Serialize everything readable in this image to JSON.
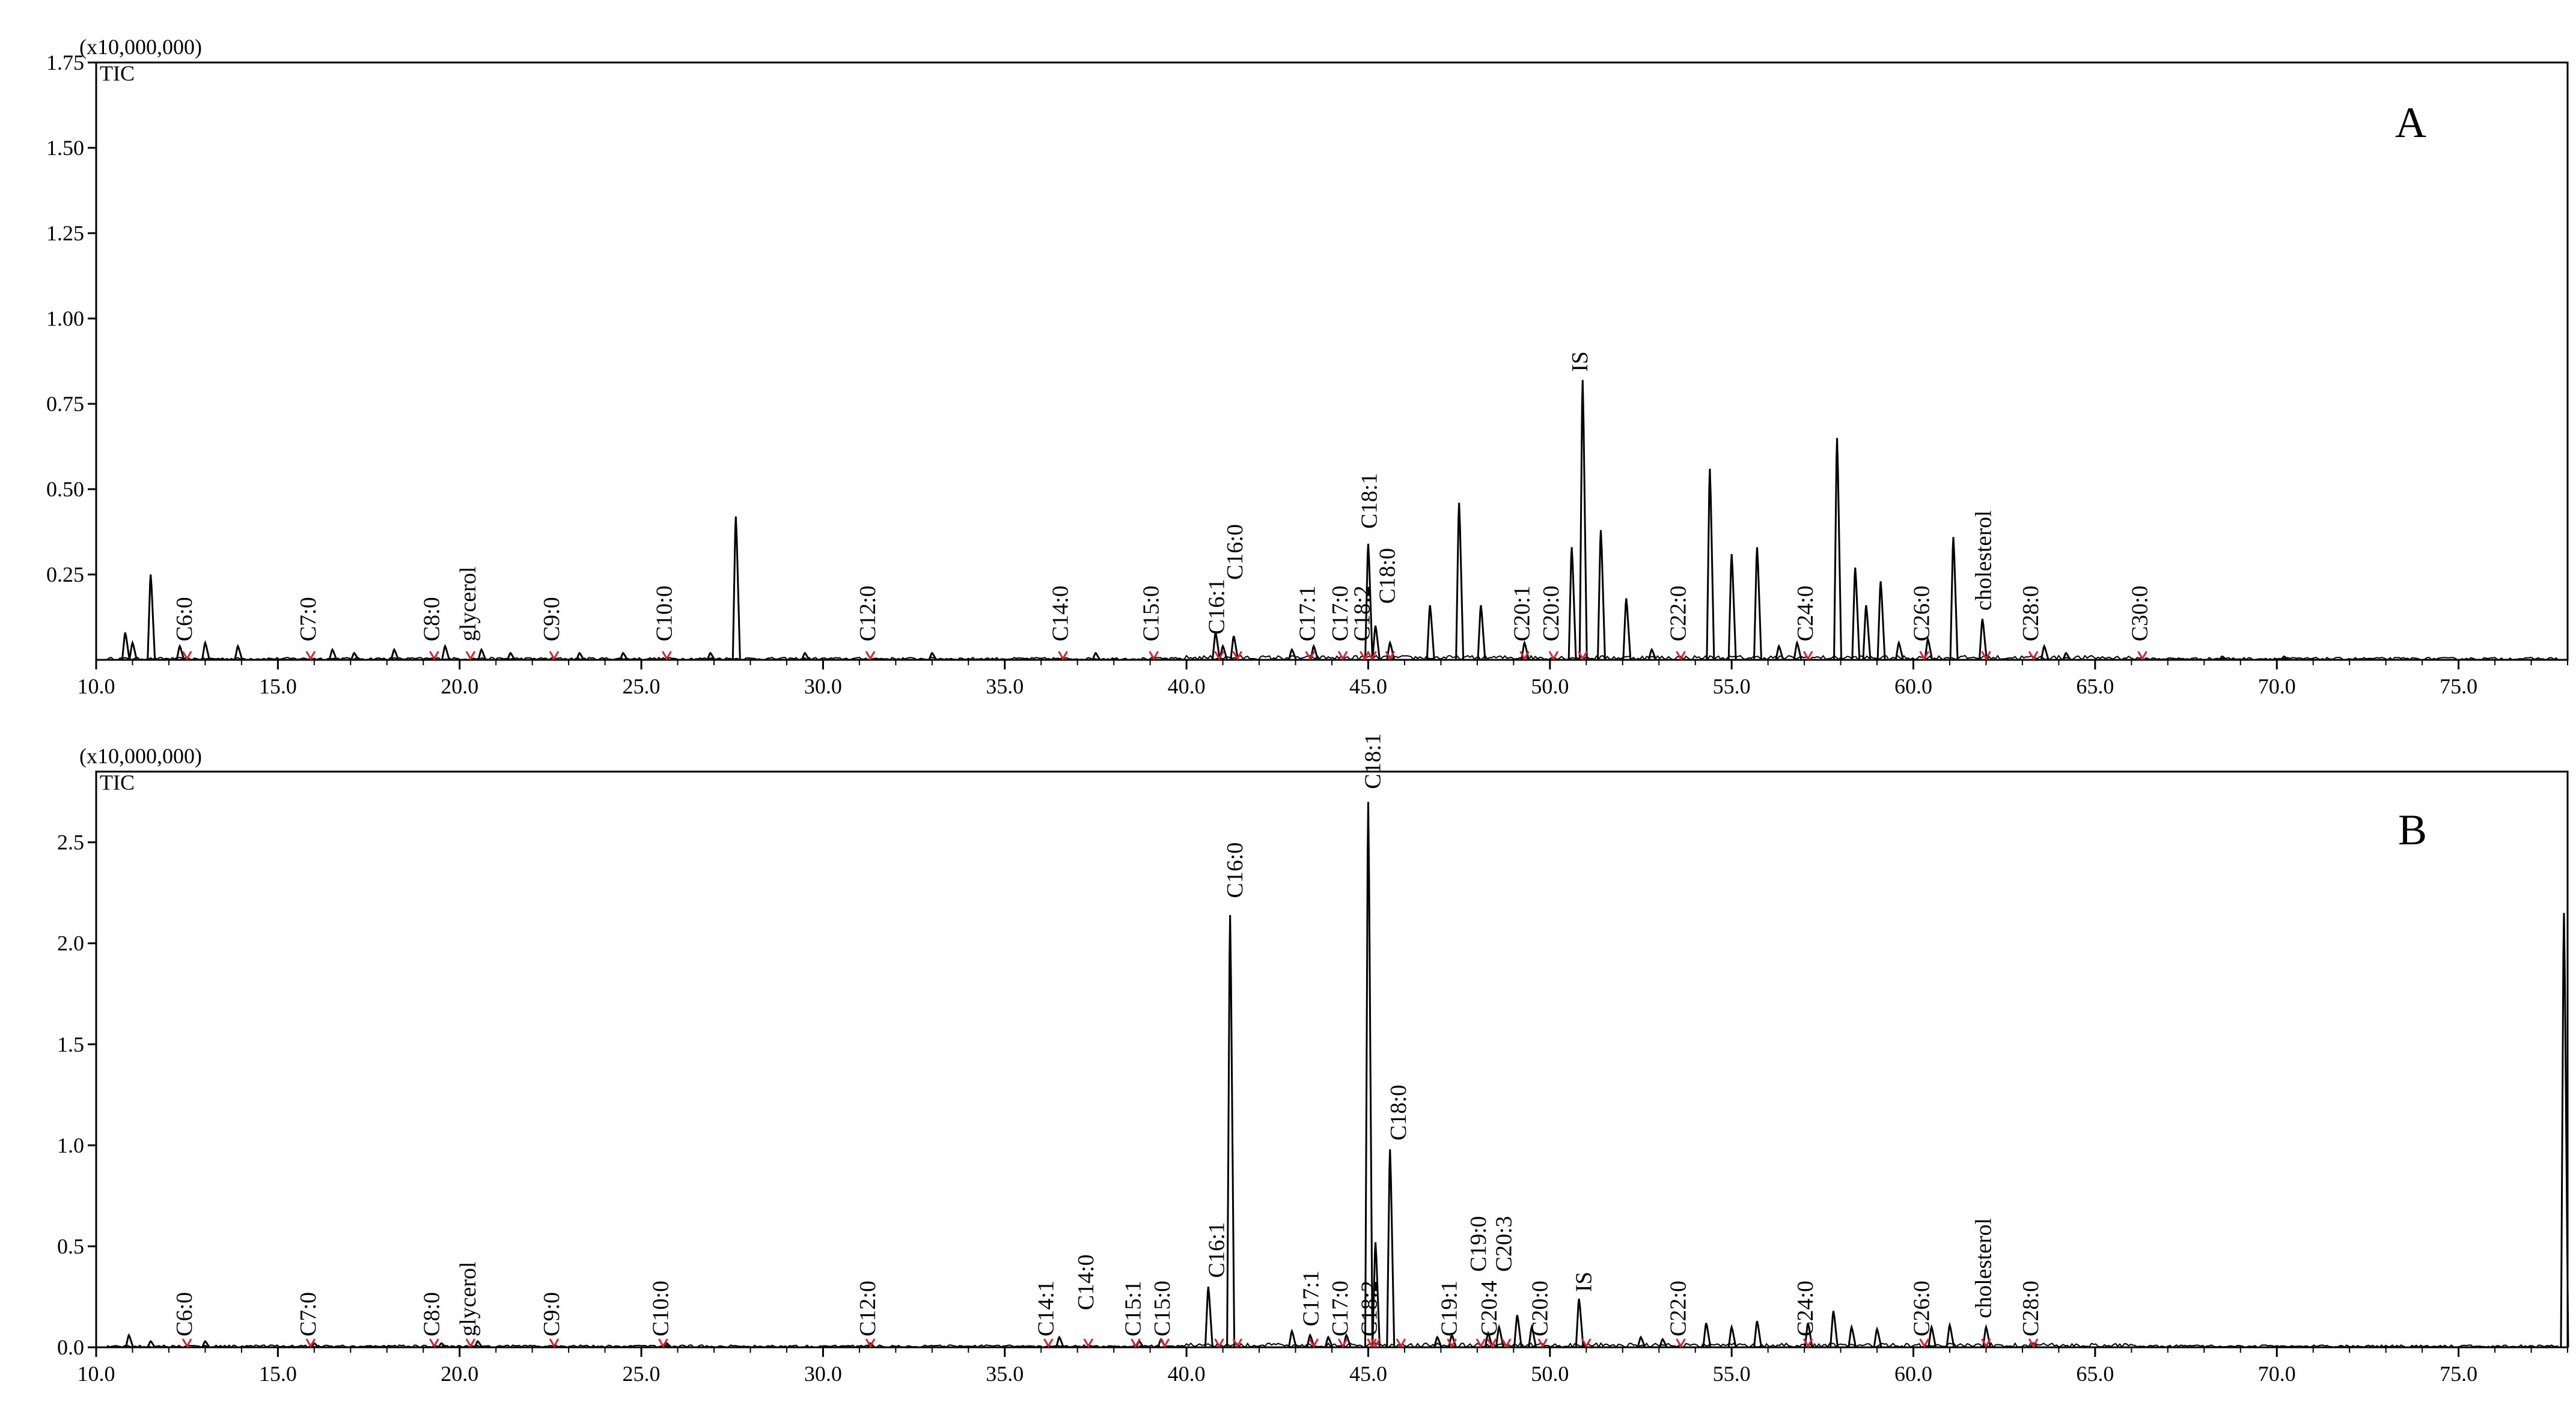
{
  "chart_data": [
    {
      "type": "line",
      "panel_label": "A",
      "trace_label": "TIC",
      "y_scale_label": "(x10,000,000)",
      "xlim": [
        10.0,
        78.0
      ],
      "ylim": [
        0,
        1.75
      ],
      "x_ticks": [
        "10.0",
        "15.0",
        "20.0",
        "25.0",
        "30.0",
        "35.0",
        "40.0",
        "45.0",
        "50.0",
        "55.0",
        "60.0",
        "65.0",
        "70.0",
        "75.0"
      ],
      "y_ticks": [
        "1.75",
        "1.50",
        "1.25",
        "1.00",
        "0.75",
        "0.50",
        "0.25"
      ],
      "peaks": [
        {
          "x": 10.8,
          "y": 0.08
        },
        {
          "x": 11.0,
          "y": 0.05
        },
        {
          "x": 11.5,
          "y": 0.25
        },
        {
          "x": 12.3,
          "y": 0.04
        },
        {
          "x": 13.0,
          "y": 0.05
        },
        {
          "x": 13.9,
          "y": 0.04
        },
        {
          "x": 16.5,
          "y": 0.03
        },
        {
          "x": 17.1,
          "y": 0.02
        },
        {
          "x": 18.2,
          "y": 0.03
        },
        {
          "x": 19.6,
          "y": 0.04
        },
        {
          "x": 20.6,
          "y": 0.03
        },
        {
          "x": 21.4,
          "y": 0.02
        },
        {
          "x": 23.3,
          "y": 0.02
        },
        {
          "x": 24.5,
          "y": 0.02
        },
        {
          "x": 26.9,
          "y": 0.02
        },
        {
          "x": 27.6,
          "y": 0.42
        },
        {
          "x": 29.5,
          "y": 0.02
        },
        {
          "x": 33.0,
          "y": 0.02
        },
        {
          "x": 37.5,
          "y": 0.02
        },
        {
          "x": 40.8,
          "y": 0.08
        },
        {
          "x": 41.0,
          "y": 0.04
        },
        {
          "x": 41.3,
          "y": 0.07
        },
        {
          "x": 42.9,
          "y": 0.03
        },
        {
          "x": 43.5,
          "y": 0.04
        },
        {
          "x": 45.0,
          "y": 0.34
        },
        {
          "x": 45.2,
          "y": 0.1
        },
        {
          "x": 45.6,
          "y": 0.05
        },
        {
          "x": 46.7,
          "y": 0.16
        },
        {
          "x": 47.5,
          "y": 0.46
        },
        {
          "x": 48.1,
          "y": 0.16
        },
        {
          "x": 49.3,
          "y": 0.05
        },
        {
          "x": 50.6,
          "y": 0.33
        },
        {
          "x": 50.9,
          "y": 0.82
        },
        {
          "x": 51.4,
          "y": 0.38
        },
        {
          "x": 52.1,
          "y": 0.18
        },
        {
          "x": 52.8,
          "y": 0.03
        },
        {
          "x": 54.4,
          "y": 0.56
        },
        {
          "x": 55.0,
          "y": 0.31
        },
        {
          "x": 55.7,
          "y": 0.33
        },
        {
          "x": 56.3,
          "y": 0.04
        },
        {
          "x": 56.8,
          "y": 0.05
        },
        {
          "x": 57.9,
          "y": 0.65
        },
        {
          "x": 58.4,
          "y": 0.27
        },
        {
          "x": 58.7,
          "y": 0.16
        },
        {
          "x": 59.1,
          "y": 0.23
        },
        {
          "x": 59.6,
          "y": 0.05
        },
        {
          "x": 60.4,
          "y": 0.06
        },
        {
          "x": 61.1,
          "y": 0.36
        },
        {
          "x": 61.9,
          "y": 0.12
        },
        {
          "x": 63.6,
          "y": 0.04
        },
        {
          "x": 64.2,
          "y": 0.02
        },
        {
          "x": 68.5,
          "y": 0.01
        },
        {
          "x": 70.2,
          "y": 0.01
        }
      ],
      "annotations": [
        {
          "label": "C6:0",
          "x": 12.5,
          "y": 0.04
        },
        {
          "label": "C7:0",
          "x": 15.9,
          "y": 0.04
        },
        {
          "label": "C8:0",
          "x": 19.3,
          "y": 0.04
        },
        {
          "label": "glycerol",
          "x": 20.3,
          "y": 0.04
        },
        {
          "label": "C9:0",
          "x": 22.6,
          "y": 0.04
        },
        {
          "label": "C10:0",
          "x": 25.7,
          "y": 0.04
        },
        {
          "label": "C12:0",
          "x": 31.3,
          "y": 0.04
        },
        {
          "label": "C14:0",
          "x": 36.6,
          "y": 0.04
        },
        {
          "label": "C15:0",
          "x": 39.1,
          "y": 0.04
        },
        {
          "label": "C16:1",
          "x": 40.9,
          "y": 0.06
        },
        {
          "label": "C16:0",
          "x": 41.4,
          "y": 0.22
        },
        {
          "label": "C17:1",
          "x": 43.4,
          "y": 0.04
        },
        {
          "label": "C17:0",
          "x": 44.3,
          "y": 0.04
        },
        {
          "label": "C18:2",
          "x": 44.9,
          "y": 0.04
        },
        {
          "label": "C18:1",
          "x": 45.1,
          "y": 0.37
        },
        {
          "label": "C18:0",
          "x": 45.6,
          "y": 0.15
        },
        {
          "label": "C20:1",
          "x": 49.3,
          "y": 0.04
        },
        {
          "label": "C20:0",
          "x": 50.1,
          "y": 0.04
        },
        {
          "label": "IS",
          "x": 50.9,
          "y": 0.83
        },
        {
          "label": "C22:0",
          "x": 53.6,
          "y": 0.04
        },
        {
          "label": "C24:0",
          "x": 57.1,
          "y": 0.04
        },
        {
          "label": "C26:0",
          "x": 60.3,
          "y": 0.04
        },
        {
          "label": "cholesterol",
          "x": 62.0,
          "y": 0.13
        },
        {
          "label": "C28:0",
          "x": 63.3,
          "y": 0.04
        },
        {
          "label": "C30:0",
          "x": 66.3,
          "y": 0.04
        }
      ]
    },
    {
      "type": "line",
      "panel_label": "B",
      "trace_label": "TIC",
      "y_scale_label": "(x10,000,000)",
      "xlim": [
        10.0,
        78.0
      ],
      "ylim": [
        0,
        2.85
      ],
      "x_ticks": [
        "10.0",
        "15.0",
        "20.0",
        "25.0",
        "30.0",
        "35.0",
        "40.0",
        "45.0",
        "50.0",
        "55.0",
        "60.0",
        "65.0",
        "70.0",
        "75.0"
      ],
      "y_ticks": [
        "2.5",
        "2.0",
        "1.5",
        "1.0",
        "0.5",
        "0.0"
      ],
      "peaks": [
        {
          "x": 10.9,
          "y": 0.06
        },
        {
          "x": 11.5,
          "y": 0.03
        },
        {
          "x": 13.0,
          "y": 0.03
        },
        {
          "x": 16.0,
          "y": 0.02
        },
        {
          "x": 19.5,
          "y": 0.02
        },
        {
          "x": 20.5,
          "y": 0.03
        },
        {
          "x": 25.7,
          "y": 0.02
        },
        {
          "x": 31.3,
          "y": 0.02
        },
        {
          "x": 36.5,
          "y": 0.05
        },
        {
          "x": 38.7,
          "y": 0.03
        },
        {
          "x": 39.3,
          "y": 0.04
        },
        {
          "x": 40.6,
          "y": 0.3
        },
        {
          "x": 41.2,
          "y": 2.14
        },
        {
          "x": 42.9,
          "y": 0.08
        },
        {
          "x": 43.4,
          "y": 0.06
        },
        {
          "x": 43.9,
          "y": 0.05
        },
        {
          "x": 44.4,
          "y": 0.06
        },
        {
          "x": 45.0,
          "y": 2.7
        },
        {
          "x": 45.2,
          "y": 0.52
        },
        {
          "x": 45.6,
          "y": 0.98
        },
        {
          "x": 46.9,
          "y": 0.05
        },
        {
          "x": 47.3,
          "y": 0.06
        },
        {
          "x": 48.3,
          "y": 0.07
        },
        {
          "x": 48.6,
          "y": 0.1
        },
        {
          "x": 49.1,
          "y": 0.16
        },
        {
          "x": 49.5,
          "y": 0.1
        },
        {
          "x": 50.8,
          "y": 0.24
        },
        {
          "x": 52.5,
          "y": 0.05
        },
        {
          "x": 53.1,
          "y": 0.04
        },
        {
          "x": 54.3,
          "y": 0.12
        },
        {
          "x": 55.0,
          "y": 0.1
        },
        {
          "x": 55.7,
          "y": 0.13
        },
        {
          "x": 57.1,
          "y": 0.12
        },
        {
          "x": 57.8,
          "y": 0.18
        },
        {
          "x": 58.3,
          "y": 0.1
        },
        {
          "x": 59.0,
          "y": 0.09
        },
        {
          "x": 60.5,
          "y": 0.1
        },
        {
          "x": 61.0,
          "y": 0.11
        },
        {
          "x": 62.0,
          "y": 0.1
        },
        {
          "x": 63.3,
          "y": 0.02
        },
        {
          "x": 77.9,
          "y": 2.15
        }
      ],
      "annotations": [
        {
          "label": "C6:0",
          "x": 12.5,
          "y": 0.03
        },
        {
          "label": "C7:0",
          "x": 15.9,
          "y": 0.03
        },
        {
          "label": "C8:0",
          "x": 19.3,
          "y": 0.03
        },
        {
          "label": "glycerol",
          "x": 20.3,
          "y": 0.03
        },
        {
          "label": "C9:0",
          "x": 22.6,
          "y": 0.03
        },
        {
          "label": "C10:0",
          "x": 25.6,
          "y": 0.03
        },
        {
          "label": "C12:0",
          "x": 31.3,
          "y": 0.03
        },
        {
          "label": "C14:1",
          "x": 36.2,
          "y": 0.03
        },
        {
          "label": "C14:0",
          "x": 37.3,
          "y": 0.16
        },
        {
          "label": "C15:1",
          "x": 38.6,
          "y": 0.03
        },
        {
          "label": "C15:0",
          "x": 39.4,
          "y": 0.03
        },
        {
          "label": "C16:1",
          "x": 40.9,
          "y": 0.32
        },
        {
          "label": "C16:0",
          "x": 41.4,
          "y": 2.2
        },
        {
          "label": "C17:1",
          "x": 43.5,
          "y": 0.08
        },
        {
          "label": "C17:0",
          "x": 44.3,
          "y": 0.03
        },
        {
          "label": "C18:2",
          "x": 45.1,
          "y": 0.03
        },
        {
          "label": "C18:1",
          "x": 45.2,
          "y": 2.74
        },
        {
          "label": "C18:0",
          "x": 45.9,
          "y": 1.0
        },
        {
          "label": "C19:1",
          "x": 47.3,
          "y": 0.03
        },
        {
          "label": "C19:0",
          "x": 48.1,
          "y": 0.35
        },
        {
          "label": "C20:4",
          "x": 48.4,
          "y": 0.03
        },
        {
          "label": "C20:3",
          "x": 48.8,
          "y": 0.35
        },
        {
          "label": "C20:0",
          "x": 49.8,
          "y": 0.03
        },
        {
          "label": "IS",
          "x": 51.0,
          "y": 0.25
        },
        {
          "label": "C22:0",
          "x": 53.6,
          "y": 0.03
        },
        {
          "label": "C24:0",
          "x": 57.1,
          "y": 0.03
        },
        {
          "label": "C26:0",
          "x": 60.3,
          "y": 0.03
        },
        {
          "label": "cholesterol",
          "x": 62.0,
          "y": 0.12
        },
        {
          "label": "C28:0",
          "x": 63.3,
          "y": 0.03
        }
      ]
    }
  ]
}
